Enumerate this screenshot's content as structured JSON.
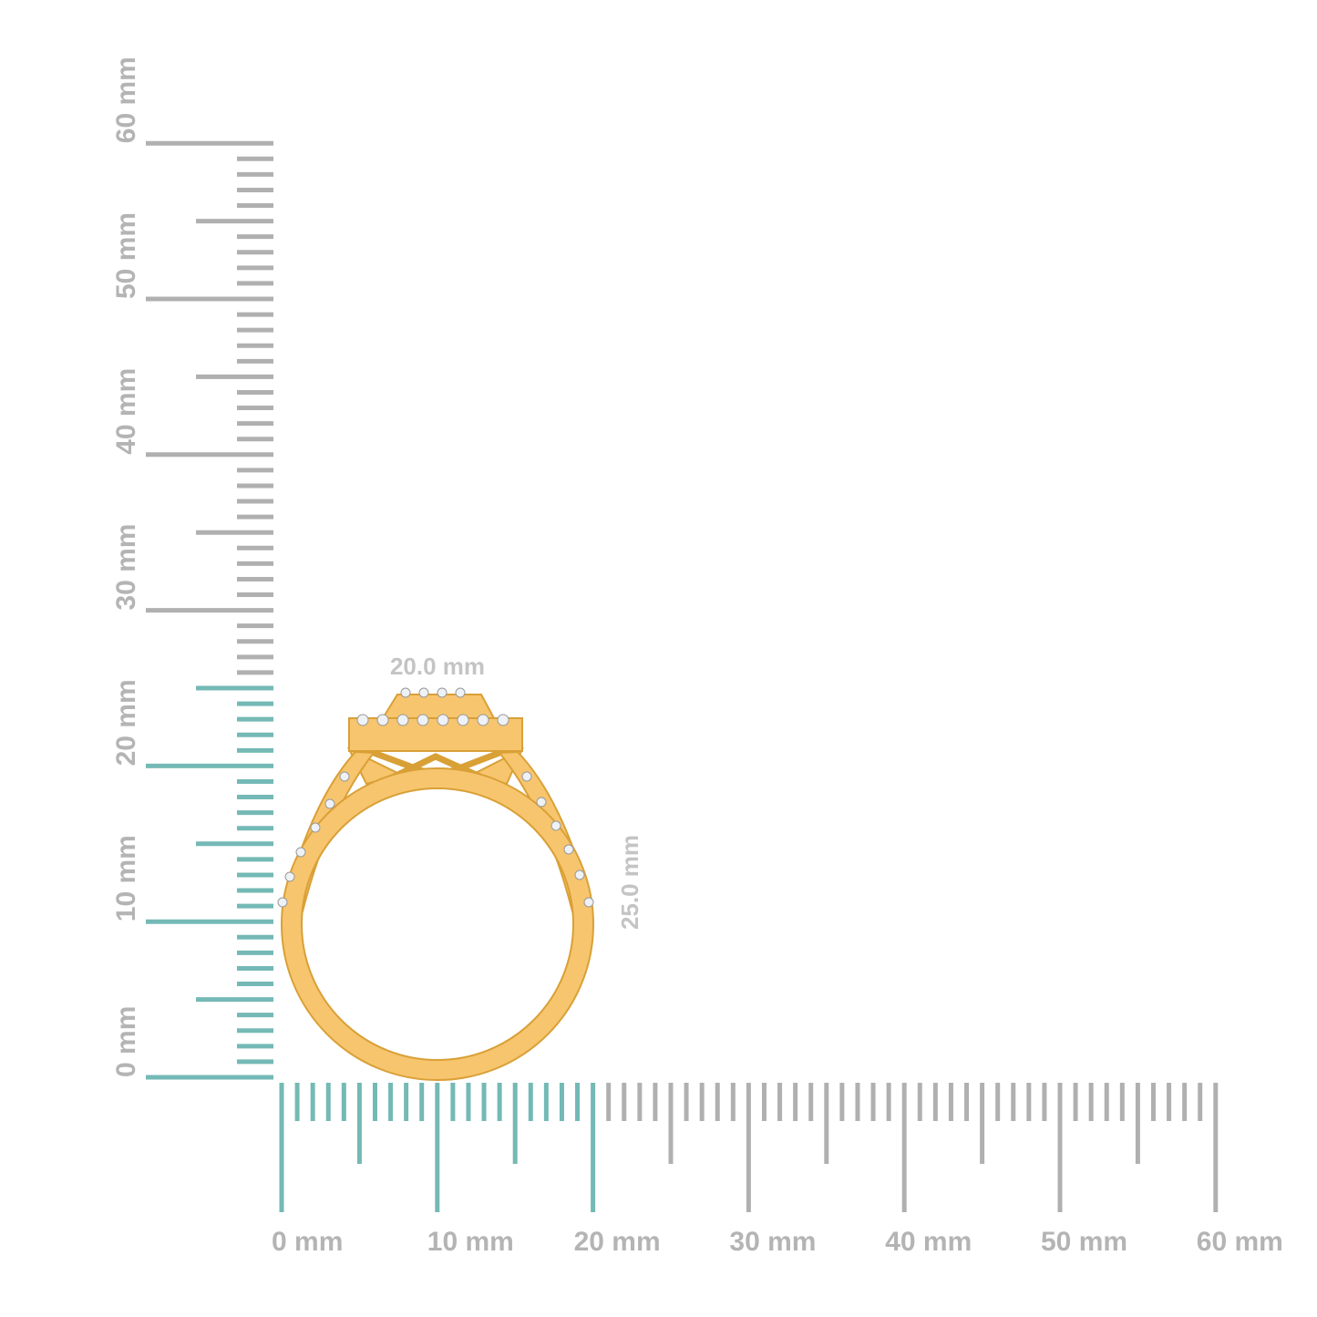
{
  "rulers": {
    "unit": "mm",
    "max": 60,
    "highlight_color": "#74b9b5",
    "base_color": "#b0b0b0",
    "vertical": {
      "highlight_to": 25,
      "labels": [
        "0 mm",
        "10 mm",
        "20 mm",
        "30 mm",
        "40 mm",
        "50 mm",
        "60 mm"
      ]
    },
    "horizontal": {
      "highlight_to": 20,
      "labels": [
        "0 mm",
        "10 mm",
        "20 mm",
        "30 mm",
        "40 mm",
        "50 mm",
        "60 mm"
      ]
    }
  },
  "dimensions": {
    "width_label": "20.0 mm",
    "height_label": "25.0 mm"
  },
  "product": {
    "metal_color": "#f7c56e",
    "edge_color": "#d9a036",
    "stone_color": "#eef2f6"
  }
}
